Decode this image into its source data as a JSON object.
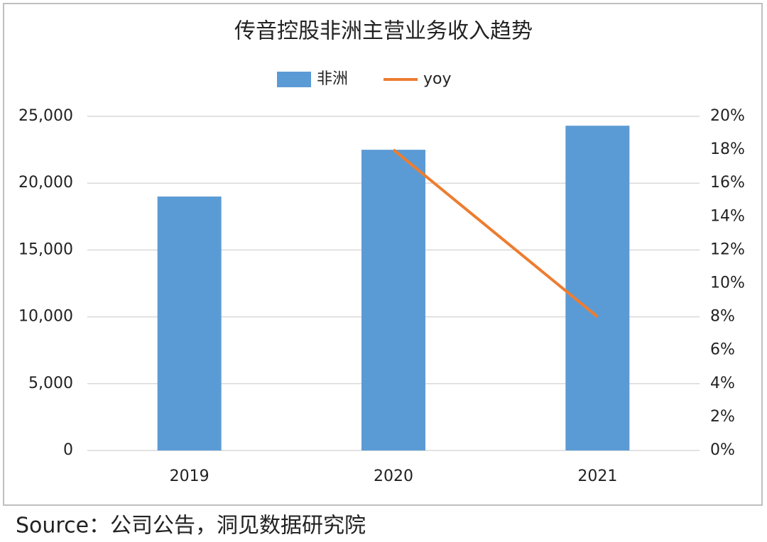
{
  "chart_data": {
    "type": "bar_line",
    "title": "传音控股非洲主营业务收入趋势",
    "categories": [
      "2019",
      "2020",
      "2021"
    ],
    "series": [
      {
        "name": "非洲",
        "color": "#5b9bd5",
        "type": "bar",
        "values": [
          19000,
          22500,
          24300
        ]
      },
      {
        "name": "yoy",
        "color": "#ed7d31",
        "type": "line",
        "axis": "y2",
        "values": [
          null,
          18,
          8
        ]
      }
    ],
    "ylim": [
      0,
      25000
    ],
    "yticks": [
      0,
      {
        "value": 5000,
        "label": "5,000"
      },
      {
        "value": 10000,
        "label": "10,000"
      },
      {
        "value": 15000,
        "label": "15,000"
      },
      {
        "value": 20000,
        "label": "20,000"
      },
      {
        "value": 25000,
        "label": "25,000"
      }
    ],
    "y2lim": [
      0,
      20
    ],
    "y2ticks": [
      {
        "value": 0,
        "label": "0%"
      },
      {
        "value": 2,
        "label": "2%"
      },
      {
        "value": 4,
        "label": "4%"
      },
      {
        "value": 6,
        "label": "6%"
      },
      {
        "value": 8,
        "label": "8%"
      },
      {
        "value": 10,
        "label": "10%"
      },
      {
        "value": 12,
        "label": "12%"
      },
      {
        "value": 14,
        "label": "14%"
      },
      {
        "value": 16,
        "label": "16%"
      },
      {
        "value": 18,
        "label": "18%"
      },
      {
        "value": 20,
        "label": "20%"
      }
    ],
    "grid": true,
    "legend": "top",
    "source": "Source：公司公告，洞见数据研究院"
  }
}
